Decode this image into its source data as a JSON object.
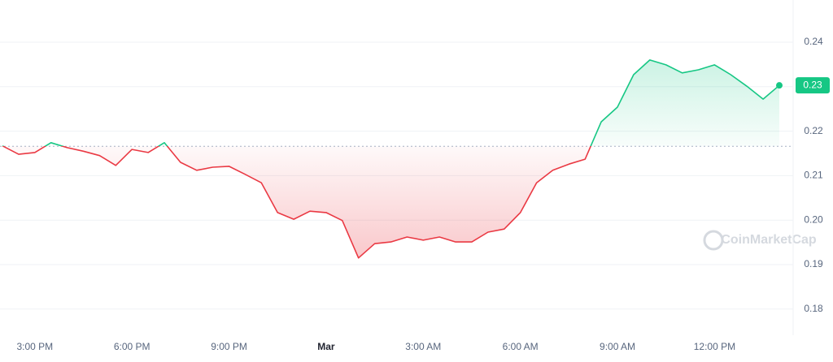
{
  "chart_data": {
    "type": "line",
    "watermark": "CoinMarketCap",
    "categories": [
      null,
      null,
      "3:00 PM",
      null,
      null,
      null,
      null,
      null,
      "6:00 PM",
      null,
      null,
      null,
      null,
      null,
      "9:00 PM",
      null,
      null,
      null,
      null,
      null,
      "Mar",
      null,
      null,
      null,
      null,
      null,
      "3:00 AM",
      null,
      null,
      null,
      null,
      null,
      "6:00 AM",
      null,
      null,
      null,
      null,
      null,
      "9:00 AM",
      null,
      null,
      null,
      null,
      null,
      "12:00 PM",
      null,
      null,
      null,
      null
    ],
    "values": [
      0.2167,
      0.2148,
      0.2152,
      0.2174,
      0.2163,
      0.2155,
      0.2145,
      0.2123,
      0.2159,
      0.2152,
      0.2174,
      0.213,
      0.2112,
      0.2119,
      0.2121,
      0.2103,
      0.2084,
      0.2017,
      0.2002,
      0.202,
      0.2017,
      0.1999,
      0.1915,
      0.1947,
      0.1951,
      0.1962,
      0.1955,
      0.1962,
      0.1951,
      0.1951,
      0.1973,
      0.198,
      0.2017,
      0.2084,
      0.2112,
      0.2126,
      0.2137,
      0.2221,
      0.2254,
      0.2327,
      0.236,
      0.2349,
      0.2331,
      0.2338,
      0.2349,
      0.2327,
      0.2301,
      0.2272,
      0.2303
    ],
    "value_labels": [
      null,
      null,
      null,
      null,
      null,
      null,
      null,
      null,
      null,
      null,
      null,
      null,
      null,
      null,
      null,
      null,
      null,
      null,
      null,
      null,
      null,
      null,
      null,
      null,
      null,
      null,
      null,
      null,
      null,
      null,
      null,
      null,
      null,
      null,
      null,
      null,
      null,
      null,
      null,
      null,
      null,
      null,
      null,
      null,
      null,
      null,
      null,
      null,
      "0.23"
    ],
    "baseline": 0.2166,
    "up_color": "#16c784",
    "down_color": "#ea3943",
    "ylim": [
      0.1745,
      0.2495
    ],
    "yticks": [
      0.18,
      0.19,
      {
        "value": 0.2,
        "label": "0.20"
      },
      0.21,
      0.22,
      0.23,
      0.24
    ],
    "grid": true
  }
}
